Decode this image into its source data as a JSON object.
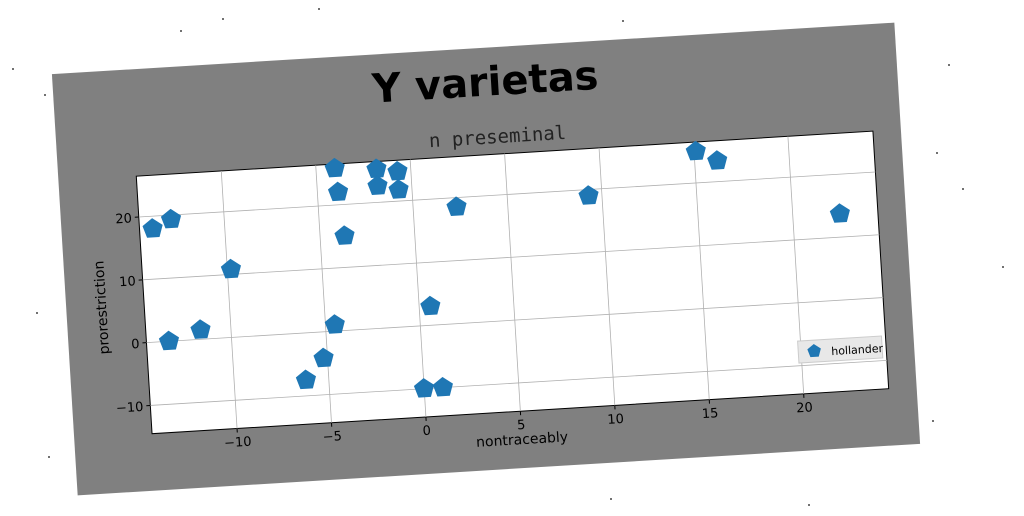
{
  "chart_data": {
    "type": "scatter",
    "title": "Y varietas",
    "subtitle": "n preseminal",
    "xlabel": "nontraceably",
    "ylabel": "prorestriction",
    "xlim": [
      -14.5,
      24.5
    ],
    "ylim": [
      -14.5,
      26.5
    ],
    "xticks": [
      -10,
      -5,
      0,
      5,
      10,
      15,
      20
    ],
    "yticks": [
      -10,
      0,
      10,
      20
    ],
    "grid": true,
    "legend_position": "lower-right",
    "series": [
      {
        "name": "hollander",
        "color": "#1f77b4",
        "marker": "pentagon",
        "points": [
          {
            "x": -13.8,
            "y": 18.0
          },
          {
            "x": -12.8,
            "y": 19.3
          },
          {
            "x": -13.3,
            "y": 0.0
          },
          {
            "x": -11.6,
            "y": 1.5
          },
          {
            "x": -9.8,
            "y": 10.8
          },
          {
            "x": -6.2,
            "y": -7.5
          },
          {
            "x": -5.2,
            "y": -4.2
          },
          {
            "x": -4.5,
            "y": 1.0
          },
          {
            "x": -4.0,
            "y": 25.8
          },
          {
            "x": -3.9,
            "y": 22.0
          },
          {
            "x": -3.7,
            "y": 15.0
          },
          {
            "x": -1.8,
            "y": 25.3
          },
          {
            "x": -1.8,
            "y": 22.6
          },
          {
            "x": -0.7,
            "y": 24.7
          },
          {
            "x": -0.7,
            "y": 21.8
          },
          {
            "x": 0.0,
            "y": -10.0
          },
          {
            "x": 0.6,
            "y": 3.0
          },
          {
            "x": 1.0,
            "y": -10.0
          },
          {
            "x": 2.3,
            "y": 18.5
          },
          {
            "x": 9.3,
            "y": 19.0
          },
          {
            "x": 15.1,
            "y": 25.0
          },
          {
            "x": 16.2,
            "y": 23.3
          },
          {
            "x": 22.5,
            "y": 13.7
          }
        ]
      }
    ]
  },
  "colors": {
    "figure_background": "#808080",
    "axes_background": "#ffffff",
    "grid": "#b0b0b0",
    "marker": "#1f77b4"
  }
}
